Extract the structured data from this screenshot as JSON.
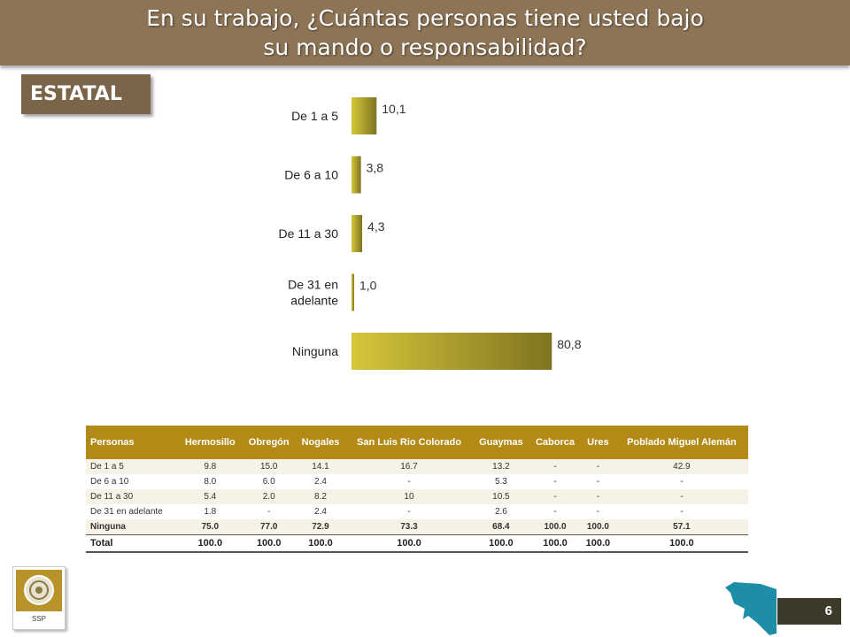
{
  "title_line1": "En su trabajo, ¿Cuántas personas tiene usted bajo",
  "title_line2": "su mando o responsabilidad?",
  "section_label": "ESTATAL",
  "chart_data": {
    "type": "bar",
    "orientation": "horizontal",
    "categories": [
      [
        "De 1 a 5"
      ],
      [
        "De 6 a 10"
      ],
      [
        "De 11 a 30"
      ],
      [
        "De 31 en",
        "adelante"
      ],
      [
        "Ninguna"
      ]
    ],
    "values": [
      10.1,
      3.8,
      4.3,
      1.0,
      80.8
    ],
    "value_labels": [
      "10,1",
      "3,8",
      "4,3",
      "1,0",
      "80,8"
    ],
    "title": "",
    "xlabel": "",
    "ylabel": "",
    "xlim": [
      0,
      100
    ],
    "grid": false,
    "legend": "none",
    "bar_color_start": "#d6c63a",
    "bar_color_end": "#7f7420"
  },
  "table": {
    "headers": [
      "Personas",
      "Hermosillo",
      "Obregón",
      "Nogales",
      "San Luis Rio Colorado",
      "Guaymas",
      "Caborca",
      "Ures",
      "Poblado Miguel Alemán"
    ],
    "rows": [
      [
        "De 1 a 5",
        "9.8",
        "15.0",
        "14.1",
        "16.7",
        "13.2",
        "-",
        "-",
        "42.9"
      ],
      [
        "De 6 a 10",
        "8.0",
        "6.0",
        "2.4",
        "-",
        "5.3",
        "-",
        "-",
        "-"
      ],
      [
        "De 11 a 30",
        "5.4",
        "2.0",
        "8.2",
        "10",
        "10.5",
        "-",
        "-",
        "-"
      ],
      [
        "De 31 en adelante",
        "1.8",
        "-",
        "2.4",
        "-",
        "2.6",
        "-",
        "-",
        "-"
      ],
      [
        "Ninguna",
        "75.0",
        "77.0",
        "72.9",
        "73.3",
        "68.4",
        "100.0",
        "100.0",
        "57.1"
      ]
    ],
    "total": [
      "Total",
      "100.0",
      "100.0",
      "100.0",
      "100.0",
      "100.0",
      "100.0",
      "100.0",
      "100.0"
    ]
  },
  "logo_text": "SSP",
  "page_number": "6",
  "colors": {
    "title_bar": "#8c7455",
    "section_badge": "#7b6548",
    "table_header": "#b38a15",
    "map": "#1e8ea8"
  },
  "icons": [
    "ssp-seal-icon",
    "sonora-map-icon"
  ]
}
